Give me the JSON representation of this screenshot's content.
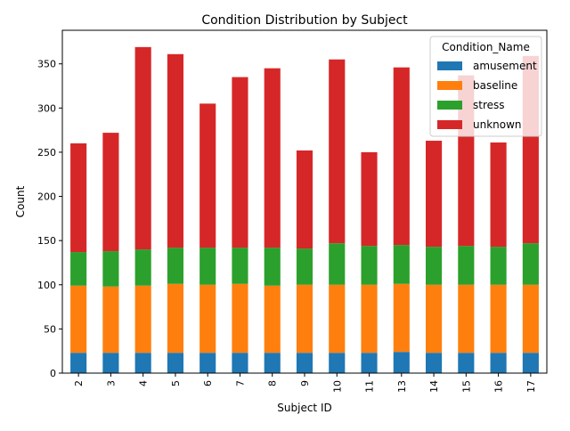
{
  "chart_data": {
    "type": "bar",
    "stacked": true,
    "title": "Condition Distribution by Subject",
    "xlabel": "Subject ID",
    "ylabel": "Count",
    "ylim": [
      0,
      388
    ],
    "yticks": [
      0,
      50,
      100,
      150,
      200,
      250,
      300,
      350
    ],
    "categories": [
      "2",
      "3",
      "4",
      "5",
      "6",
      "7",
      "8",
      "9",
      "10",
      "11",
      "13",
      "14",
      "15",
      "16",
      "17"
    ],
    "legend": {
      "title": "Condition_Name",
      "placement": "top-right"
    },
    "series": [
      {
        "name": "amusement",
        "color": "#1f77b4",
        "values": [
          23,
          23,
          23,
          23,
          23,
          23,
          23,
          23,
          23,
          23,
          24,
          23,
          23,
          23,
          23
        ]
      },
      {
        "name": "baseline",
        "color": "#ff7f0e",
        "values": [
          76,
          75,
          76,
          78,
          77,
          78,
          76,
          77,
          77,
          77,
          77,
          77,
          77,
          77,
          77
        ]
      },
      {
        "name": "stress",
        "color": "#2ca02c",
        "values": [
          38,
          40,
          41,
          41,
          42,
          41,
          43,
          41,
          47,
          44,
          44,
          43,
          44,
          43,
          47
        ]
      },
      {
        "name": "unknown",
        "color": "#d62728",
        "values": [
          123,
          134,
          229,
          219,
          163,
          193,
          203,
          111,
          208,
          106,
          201,
          120,
          193,
          118,
          212
        ]
      }
    ]
  }
}
